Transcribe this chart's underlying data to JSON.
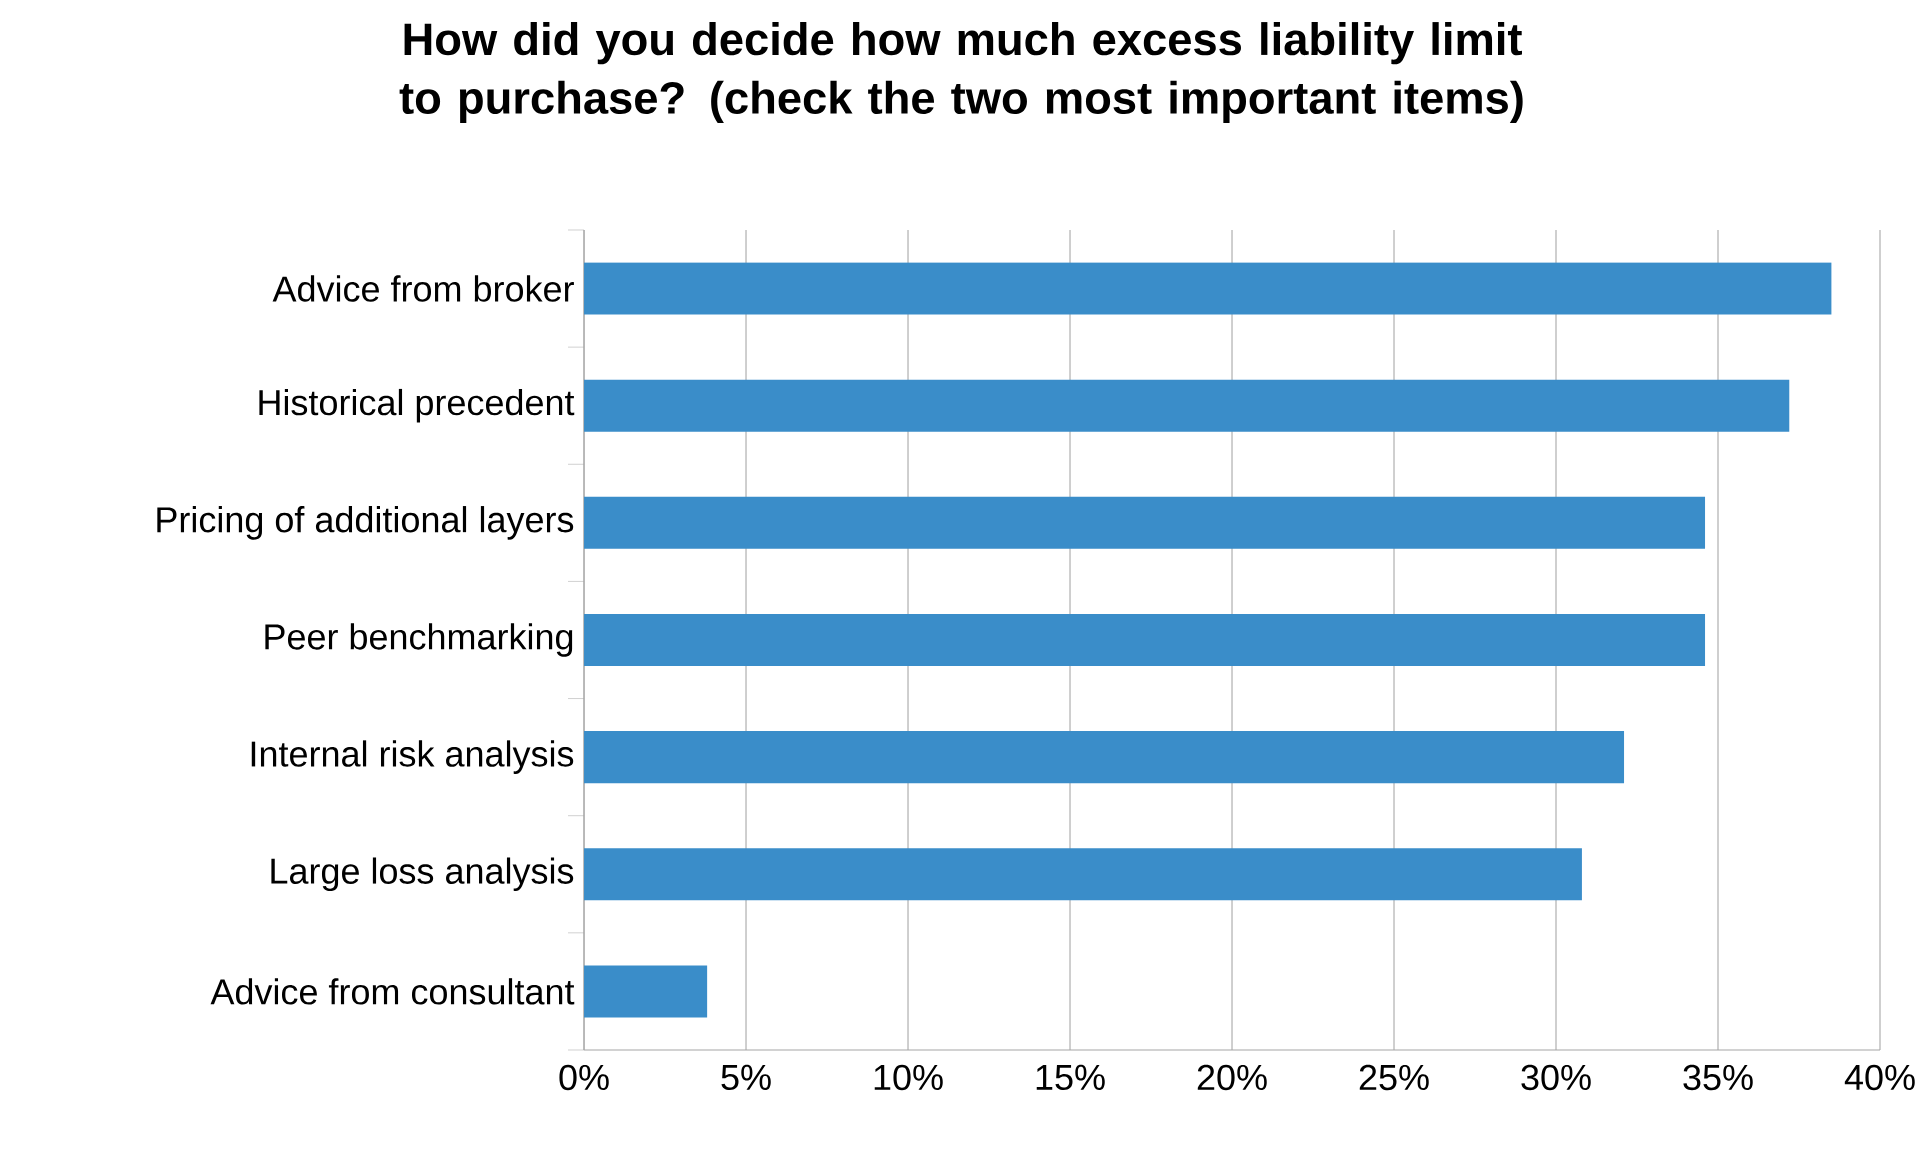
{
  "chart_data": {
    "type": "bar",
    "orientation": "horizontal",
    "title": "How did you decide how much excess liability limit to purchase? (check the two most important items)",
    "categories": [
      "Advice from broker",
      "Historical precedent",
      "Pricing of additional layers",
      "Peer benchmarking",
      "Internal risk analysis",
      "Large loss analysis",
      "Advice from consultant"
    ],
    "values": [
      38.5,
      37.2,
      34.6,
      34.6,
      32.1,
      30.8,
      3.8
    ],
    "color": "#3a8dc9",
    "xlim": [
      0,
      40
    ],
    "xticks": [
      {
        "value": 0,
        "label": "0%"
      },
      {
        "value": 5,
        "label": "5%"
      },
      {
        "value": 10,
        "label": "10%"
      },
      {
        "value": 15,
        "label": "15%"
      },
      {
        "value": 20,
        "label": "20%"
      },
      {
        "value": 25,
        "label": "25%"
      },
      {
        "value": 30,
        "label": "30%"
      },
      {
        "value": 35,
        "label": "35%"
      },
      {
        "value": 40,
        "label": "40%"
      }
    ],
    "grid": "x"
  }
}
